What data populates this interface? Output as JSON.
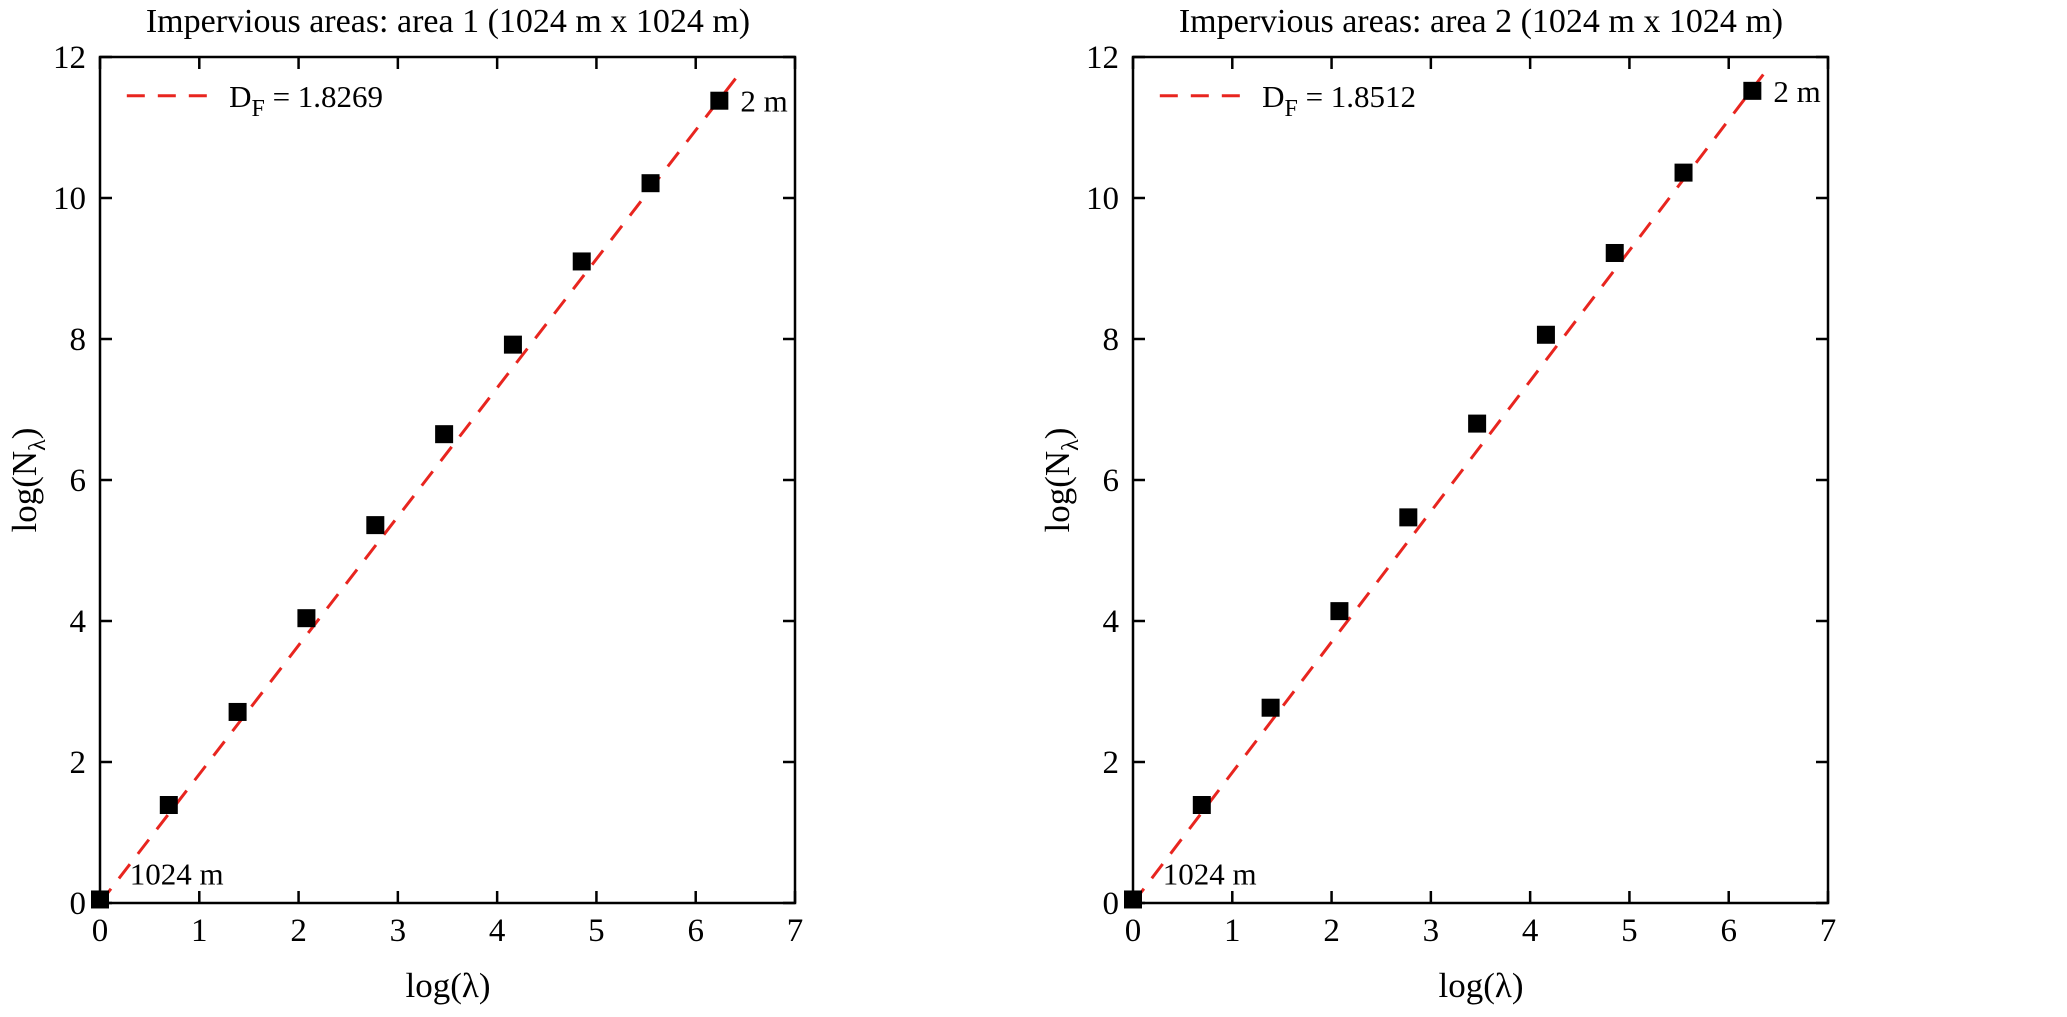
{
  "layout": {
    "background": "#ffffff"
  },
  "chart_data": [
    {
      "type": "scatter",
      "title": "Impervious areas: area 1 (1024 m x 1024 m)",
      "xlabel": "log(λ)",
      "ylabel": "log(N_λ)",
      "ylabel_parts": [
        "log(N",
        "λ",
        ")"
      ],
      "xlim": [
        0,
        7
      ],
      "ylim": [
        0,
        12
      ],
      "xticks": [
        0,
        1,
        2,
        3,
        4,
        5,
        6,
        7
      ],
      "yticks": [
        0,
        2,
        4,
        6,
        8,
        10,
        12
      ],
      "grid": false,
      "legend_position": "top-left-inside",
      "points": {
        "x": [
          0,
          0.693,
          1.386,
          2.079,
          2.773,
          3.466,
          4.159,
          4.852,
          5.545,
          6.238
        ],
        "y": [
          0.05,
          1.39,
          2.71,
          4.04,
          5.36,
          6.65,
          7.92,
          9.1,
          10.21,
          11.38
        ]
      },
      "fit": {
        "slope": 1.8269,
        "intercept": 0,
        "x_start": 0,
        "x_end": 6.45
      },
      "legend": {
        "label_main": "D",
        "label_sub": "F",
        "label_rest": " = 1.8269",
        "line_x": [
          0.27,
          1.1
        ],
        "text_x": 1.3,
        "y": 11.45
      },
      "annotations": [
        {
          "text": "1024 m",
          "x": 0.3,
          "y": 0.42
        },
        {
          "text": "2 m",
          "x": 6.45,
          "y": 11.38
        }
      ],
      "colors": {
        "fit_line": "#e8251f",
        "marker": "#000000",
        "axis": "#000000"
      }
    },
    {
      "type": "scatter",
      "title": "Impervious areas: area 2 (1024 m x 1024 m)",
      "xlabel": "log(λ)",
      "ylabel": "log(N_λ)",
      "ylabel_parts": [
        "log(N",
        "λ",
        ")"
      ],
      "xlim": [
        0,
        7
      ],
      "ylim": [
        0,
        12
      ],
      "xticks": [
        0,
        1,
        2,
        3,
        4,
        5,
        6,
        7
      ],
      "yticks": [
        0,
        2,
        4,
        6,
        8,
        10,
        12
      ],
      "grid": false,
      "legend_position": "top-left-inside",
      "points": {
        "x": [
          0,
          0.693,
          1.386,
          2.079,
          2.773,
          3.466,
          4.159,
          4.852,
          5.545,
          6.238
        ],
        "y": [
          0.05,
          1.39,
          2.77,
          4.14,
          5.47,
          6.8,
          8.06,
          9.22,
          10.36,
          11.52
        ]
      },
      "fit": {
        "slope": 1.8512,
        "intercept": 0,
        "x_start": 0,
        "x_end": 6.42
      },
      "legend": {
        "label_main": "D",
        "label_sub": "F",
        "label_rest": " = 1.8512",
        "line_x": [
          0.27,
          1.1
        ],
        "text_x": 1.3,
        "y": 11.45
      },
      "annotations": [
        {
          "text": "1024 m",
          "x": 0.3,
          "y": 0.42
        },
        {
          "text": "2 m",
          "x": 6.45,
          "y": 11.52
        }
      ],
      "colors": {
        "fit_line": "#e8251f",
        "marker": "#000000",
        "axis": "#000000"
      }
    }
  ]
}
